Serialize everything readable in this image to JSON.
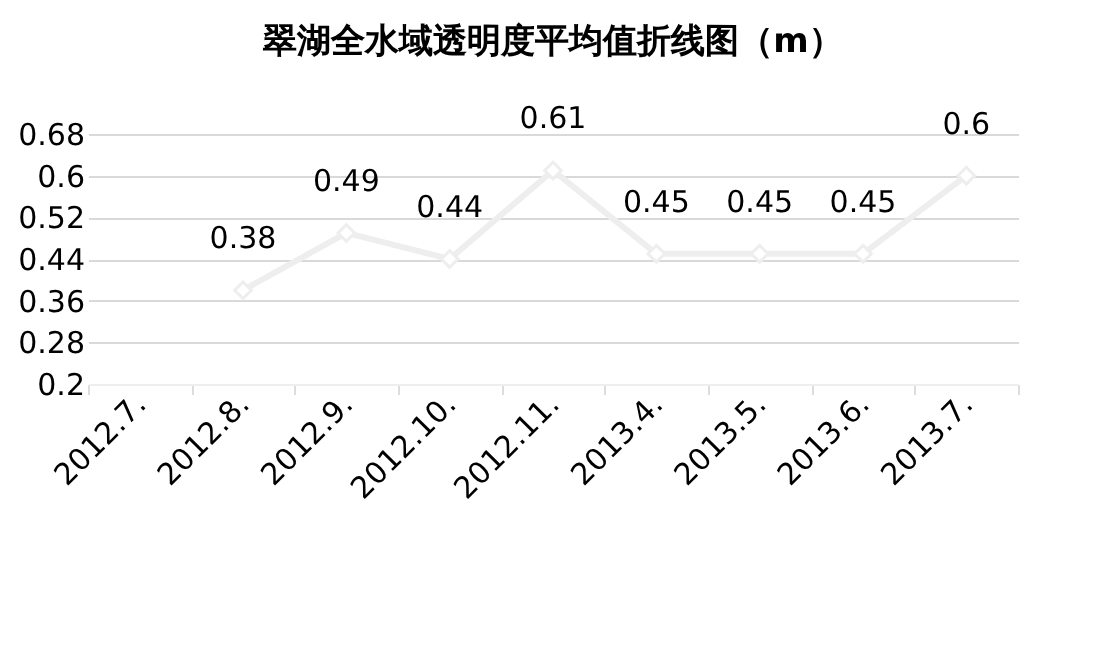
{
  "chart_data": {
    "type": "line",
    "title": "翠湖全水域透明度平均值折线图（m）",
    "categories": [
      "2012.7.",
      "2012.8.",
      "2012.9.",
      "2012.10.",
      "2012.11.",
      "2013.4.",
      "2013.5.",
      "2013.6.",
      "2013.7."
    ],
    "series": [
      {
        "color": "#eeeeee",
        "values": [
          null,
          0.38,
          0.49,
          0.44,
          0.61,
          0.45,
          0.45,
          0.45,
          0.6
        ]
      }
    ],
    "ylim": [
      0.2,
      0.68
    ],
    "yticks": [
      0.2,
      0.28,
      0.36,
      0.44,
      0.52,
      0.6,
      0.68
    ],
    "grid": "y",
    "marker": "diamond",
    "line_style": "solid",
    "data_labels": true
  }
}
